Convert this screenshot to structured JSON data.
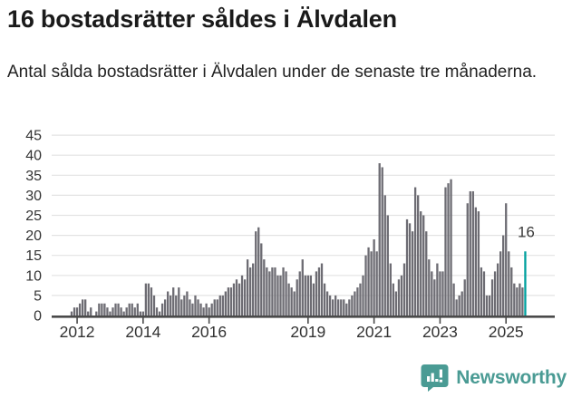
{
  "header": {
    "title": "16 bostadsrätter såldes i Älvdalen",
    "subtitle": "Antal sålda bostadsrätter i Älvdalen under de senaste tre månaderna."
  },
  "chart_data": {
    "type": "bar",
    "title": "16 bostadsrätter såldes i Älvdalen",
    "description": "Antal sålda bostadsrätter i Älvdalen under de senaste tre månaderna (rullande 3-månaderssumma per månad)",
    "x_start": "2011-11",
    "x_end": "2025-08",
    "x_unit": "month",
    "values": [
      1,
      2,
      2,
      3,
      4,
      4,
      1,
      2,
      0,
      1,
      3,
      3,
      3,
      2,
      1,
      2,
      3,
      3,
      2,
      1,
      2,
      3,
      3,
      2,
      3,
      1,
      1,
      8,
      8,
      7,
      5,
      2,
      1,
      3,
      4,
      6,
      5,
      7,
      5,
      7,
      4,
      5,
      6,
      4,
      3,
      5,
      4,
      3,
      2,
      3,
      2,
      3,
      4,
      4,
      5,
      5,
      6,
      7,
      7,
      8,
      9,
      8,
      10,
      9,
      14,
      12,
      13,
      21,
      22,
      18,
      14,
      12,
      11,
      12,
      12,
      10,
      10,
      12,
      11,
      8,
      7,
      6,
      9,
      11,
      14,
      10,
      10,
      10,
      8,
      11,
      12,
      13,
      8,
      6,
      5,
      4,
      5,
      4,
      4,
      4,
      3,
      4,
      5,
      6,
      7,
      8,
      10,
      15,
      17,
      16,
      19,
      16,
      38,
      37,
      30,
      25,
      13,
      8,
      6,
      9,
      10,
      13,
      24,
      23,
      21,
      32,
      30,
      26,
      25,
      21,
      14,
      11,
      9,
      13,
      11,
      11,
      32,
      33,
      34,
      8,
      4,
      5,
      6,
      9,
      28,
      31,
      31,
      27,
      26,
      12,
      11,
      5,
      5,
      9,
      11,
      13,
      16,
      20,
      28,
      16,
      12,
      8,
      7,
      8,
      7,
      16
    ],
    "ylim": [
      0,
      45
    ],
    "yticks": [
      0,
      5,
      10,
      15,
      20,
      25,
      30,
      35,
      40,
      45
    ],
    "xticks": [
      2012,
      2014,
      2016,
      2019,
      2021,
      2023,
      2025
    ],
    "grid": true,
    "legend": "none",
    "bar_color": "#6d6c73",
    "highlight_color": "#00a09e",
    "highlight_index": 165,
    "highlight_label": "16"
  },
  "footer": {
    "brand": "Newsworthy",
    "brand_color": "#4a9b94"
  }
}
